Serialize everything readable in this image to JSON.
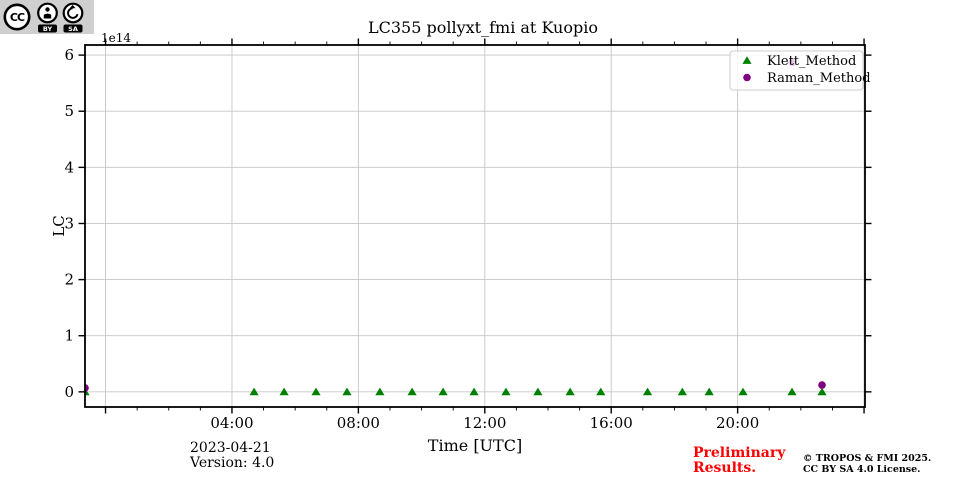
{
  "page": {
    "background": "#ffffff"
  },
  "chart_data": {
    "type": "scatter",
    "title": "LC355 pollyxt_fmi at Kuopio",
    "xlabel": "Time [UTC]",
    "ylabel": "LC",
    "y_scale_offset_label": "1e14",
    "x_unit": "hours UTC (decimal, 0 = 2023-04-21 00:00)",
    "xlim": [
      -0.65,
      24.03
    ],
    "ylim": [
      -0.27,
      6.18
    ],
    "x_major_tick_hours": [
      0,
      4,
      8,
      12,
      16,
      20,
      24
    ],
    "x_tick_labels": [
      {
        "hour": 4,
        "label": "04:00"
      },
      {
        "hour": 8,
        "label": "08:00"
      },
      {
        "hour": 12,
        "label": "12:00"
      },
      {
        "hour": 16,
        "label": "16:00"
      },
      {
        "hour": 20,
        "label": "20:00"
      }
    ],
    "x_minor_tick_interval_hours": 1,
    "y_ticks": [
      0,
      1,
      2,
      3,
      4,
      5,
      6
    ],
    "grid": true,
    "legend": {
      "position": "upper-right",
      "entries": [
        {
          "label": "Klett_Method",
          "marker": "triangle",
          "color": "#008000"
        },
        {
          "label": "Raman_Method",
          "marker": "circle",
          "color": "#800080"
        }
      ]
    },
    "series": [
      {
        "name": "Klett_Method",
        "marker": "triangle",
        "color": "#008000",
        "x": [
          -0.65,
          4.7,
          5.65,
          6.66,
          7.64,
          8.68,
          9.7,
          10.68,
          11.66,
          12.67,
          13.68,
          14.7,
          15.67,
          17.15,
          18.25,
          19.1,
          20.17,
          21.72,
          22.67
        ],
        "y": [
          0,
          0,
          0,
          0,
          0,
          0,
          0,
          0,
          0,
          0,
          0,
          0,
          0,
          0,
          0,
          0,
          0,
          0,
          0
        ]
      },
      {
        "name": "Raman_Method",
        "marker": "circle",
        "color": "#800080",
        "x": [
          -0.65,
          21.72,
          22.67
        ],
        "y": [
          0.07,
          5.87,
          0.12
        ]
      }
    ]
  },
  "annotations": {
    "date": "2023-04-21",
    "version": "Version: 4.0",
    "preliminary_line1": "Preliminary",
    "preliminary_line2": "Results.",
    "preliminary_color": "#ff0000",
    "copyright_line1": "© TROPOS & FMI 2025.",
    "copyright_line2": "CC BY SA 4.0 License.",
    "cc_badge": {
      "cc": "CC",
      "by": "BY",
      "sa": "SA"
    }
  },
  "colors": {
    "klett": "#008000",
    "raman": "#800080",
    "grid": "#c6c6c6",
    "axis": "#000000",
    "legend_border": "#cccccc",
    "badge_background": "#cfcfcf"
  }
}
